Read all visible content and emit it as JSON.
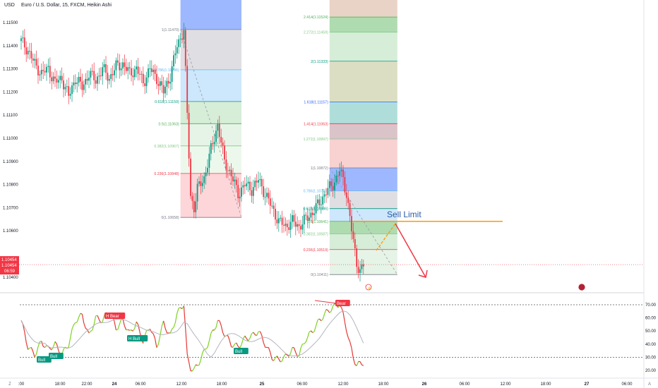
{
  "header": {
    "currency": "USD",
    "symbol_line": "Euro / U.S. Dollar, 15, FXCM, Heikin Ashi"
  },
  "price_axis": {
    "ticks": [
      "1.11500",
      "1.11400",
      "1.11300",
      "1.11200",
      "1.11100",
      "1.11000",
      "1.10900",
      "1.10800",
      "1.10700",
      "1.10600",
      "1.10500",
      "1.10400"
    ],
    "current_price": "1.10454",
    "current_price_2": "1.10454",
    "countdown": "06:59"
  },
  "rsi_axis": {
    "ticks": [
      "70.00",
      "60.00",
      "50.00",
      "40.00",
      "30.00",
      "20.00"
    ]
  },
  "time_axis": {
    "ticks": [
      ":00",
      "18:00",
      "22:00",
      "24",
      "06:00",
      "12:00",
      "18:00",
      "25",
      "06:00",
      "12:00",
      "18:00",
      "26",
      "06:00",
      "12:00",
      "18:00",
      "27",
      "06:00"
    ],
    "corner_left": "Z",
    "corner_right": "A"
  },
  "fib_left": {
    "levels": [
      "1(1.11470)",
      "0.786(1.11296)",
      "0.618(1.11159)",
      "0.5(1.11063)",
      "0.382(1.10967)",
      "0.236(1.10848)",
      "0(1.10658)"
    ],
    "colors": [
      "#787b86",
      "#64b5f6",
      "#089981",
      "#4caf50",
      "#81c784",
      "#f23645",
      "#787b86"
    ]
  },
  "fib_right": {
    "levels": [
      "2.414(1.11524)",
      "2.272(1.11459)",
      "2(1.11333)",
      "1.618(1.11157)",
      "1.414(1.11063)",
      "1.272(1.10997)",
      "1(1.10872)",
      "0.786(1.10773)",
      "0.618(1.10696)",
      "0.5(1.10641)",
      "0.382(1.10587)",
      "0.236(1.10519)",
      "0(1.10411)"
    ],
    "colors": [
      "#4caf50",
      "#81c784",
      "#089981",
      "#2962ff",
      "#f23645",
      "#81c784",
      "#787b86",
      "#64b5f6",
      "#089981",
      "#4caf50",
      "#81c784",
      "#f23645",
      "#787b86"
    ]
  },
  "annotations": {
    "sell_limit": "Sell Limit",
    "h_bear_1": "H Bear",
    "h_bull_1": "H Bull",
    "bull_1": "Bull",
    "bull_2": "Bull",
    "bull_3": "Bull",
    "bear_1": "Bear"
  },
  "colors": {
    "up": "#089981",
    "down": "#f23645",
    "sell_line": "#ff9800"
  },
  "chart_data": {
    "type": "candlestick",
    "title": "Euro / U.S. Dollar, 15, FXCM, Heikin Ashi",
    "ylim": [
      1.1035,
      1.1158
    ],
    "x_labels": [
      ":00",
      "18:00",
      "22:00",
      "24",
      "06:00",
      "12:00",
      "18:00",
      "25",
      "06:00",
      "12:00",
      "18:00",
      "26",
      "06:00",
      "12:00",
      "18:00",
      "27",
      "06:00"
    ],
    "close_path": [
      [
        0,
        1.1142
      ],
      [
        4,
        1.1138
      ],
      [
        8,
        1.1132
      ],
      [
        12,
        1.1128
      ],
      [
        16,
        1.113
      ],
      [
        20,
        1.1124
      ],
      [
        24,
        1.1126
      ],
      [
        28,
        1.1118
      ],
      [
        32,
        1.1126
      ],
      [
        36,
        1.1122
      ],
      [
        40,
        1.1128
      ],
      [
        44,
        1.1125
      ],
      [
        48,
        1.113
      ],
      [
        52,
        1.1126
      ],
      [
        56,
        1.1131
      ],
      [
        60,
        1.1132
      ],
      [
        64,
        1.1128
      ],
      [
        68,
        1.113
      ],
      [
        72,
        1.1124
      ],
      [
        76,
        1.113
      ],
      [
        80,
        1.1126
      ],
      [
        84,
        1.112
      ],
      [
        88,
        1.1127
      ],
      [
        92,
        1.114
      ],
      [
        96,
        1.1147
      ],
      [
        98,
        1.111
      ],
      [
        100,
        1.1075
      ],
      [
        102,
        1.107
      ],
      [
        104,
        1.1078
      ],
      [
        108,
        1.1083
      ],
      [
        112,
        1.1095
      ],
      [
        116,
        1.1106
      ],
      [
        120,
        1.109
      ],
      [
        124,
        1.1084
      ],
      [
        128,
        1.1076
      ],
      [
        132,
        1.108
      ],
      [
        136,
        1.1078
      ],
      [
        140,
        1.1082
      ],
      [
        144,
        1.1076
      ],
      [
        148,
        1.107
      ],
      [
        152,
        1.1064
      ],
      [
        156,
        1.1062
      ],
      [
        160,
        1.1064
      ],
      [
        164,
        1.1062
      ],
      [
        168,
        1.1065
      ],
      [
        172,
        1.1068
      ],
      [
        176,
        1.1072
      ],
      [
        180,
        1.1077
      ],
      [
        184,
        1.108
      ],
      [
        188,
        1.1086
      ],
      [
        190,
        1.1082
      ],
      [
        192,
        1.1076
      ],
      [
        194,
        1.1066
      ],
      [
        196,
        1.1055
      ],
      [
        198,
        1.1046
      ],
      [
        200,
        1.1043
      ],
      [
        202,
        1.1045
      ]
    ],
    "rsi_path": [
      [
        0,
        58
      ],
      [
        4,
        38
      ],
      [
        8,
        32
      ],
      [
        12,
        42
      ],
      [
        16,
        36
      ],
      [
        20,
        40
      ],
      [
        24,
        32
      ],
      [
        28,
        40
      ],
      [
        32,
        58
      ],
      [
        36,
        62
      ],
      [
        40,
        46
      ],
      [
        44,
        60
      ],
      [
        48,
        58
      ],
      [
        52,
        66
      ],
      [
        56,
        52
      ],
      [
        60,
        58
      ],
      [
        64,
        48
      ],
      [
        68,
        56
      ],
      [
        72,
        42
      ],
      [
        76,
        54
      ],
      [
        80,
        38
      ],
      [
        84,
        56
      ],
      [
        88,
        46
      ],
      [
        92,
        63
      ],
      [
        96,
        71
      ],
      [
        98,
        30
      ],
      [
        100,
        22
      ],
      [
        102,
        20
      ],
      [
        104,
        24
      ],
      [
        108,
        34
      ],
      [
        112,
        46
      ],
      [
        116,
        58
      ],
      [
        120,
        48
      ],
      [
        124,
        40
      ],
      [
        128,
        38
      ],
      [
        132,
        44
      ],
      [
        136,
        46
      ],
      [
        140,
        50
      ],
      [
        144,
        40
      ],
      [
        148,
        30
      ],
      [
        152,
        28
      ],
      [
        156,
        30
      ],
      [
        160,
        36
      ],
      [
        164,
        32
      ],
      [
        168,
        44
      ],
      [
        172,
        50
      ],
      [
        176,
        58
      ],
      [
        180,
        64
      ],
      [
        184,
        68
      ],
      [
        188,
        71
      ],
      [
        190,
        62
      ],
      [
        192,
        52
      ],
      [
        194,
        40
      ],
      [
        196,
        30
      ],
      [
        198,
        24
      ],
      [
        200,
        25
      ],
      [
        202,
        26
      ]
    ],
    "rsi_levels": [
      70,
      30
    ]
  }
}
